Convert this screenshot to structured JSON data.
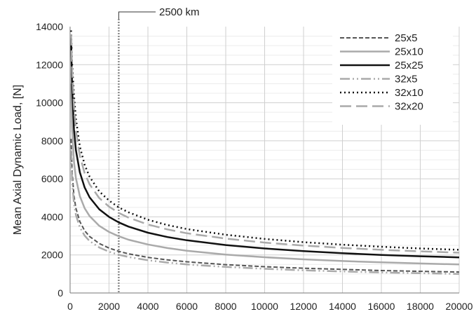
{
  "chart_data": {
    "type": "line",
    "title": "",
    "xlabel": "",
    "ylabel": "Mean Axial Dynamic Load, [N]",
    "xlim": [
      0,
      20000
    ],
    "ylim": [
      0,
      14000
    ],
    "x_ticks": [
      0,
      2000,
      4000,
      6000,
      8000,
      10000,
      12000,
      14000,
      16000,
      18000,
      20000
    ],
    "y_ticks": [
      0,
      2000,
      4000,
      6000,
      8000,
      10000,
      12000,
      14000
    ],
    "grid": true,
    "legend": "top-right",
    "annotation": {
      "label": "2500 km",
      "x": 2500
    },
    "x": [
      50,
      100,
      200,
      300,
      500,
      750,
      1000,
      1500,
      2000,
      2500,
      3000,
      4000,
      5000,
      6000,
      8000,
      10000,
      12000,
      14000,
      16000,
      18000,
      20000
    ],
    "series": [
      {
        "name": "25x5",
        "color": "#555555",
        "dash": "6,3",
        "width": 2,
        "values": [
          8100,
          6400,
          5100,
          4450,
          3750,
          3270,
          2970,
          2600,
          2360,
          2190,
          2060,
          1870,
          1740,
          1640,
          1490,
          1380,
          1300,
          1240,
          1180,
          1140,
          1100
        ]
      },
      {
        "name": "25x10",
        "color": "#aaaaaa",
        "dash": "",
        "width": 2.5,
        "values": [
          11000,
          8700,
          6900,
          6030,
          5090,
          4450,
          4040,
          3530,
          3210,
          2980,
          2800,
          2550,
          2360,
          2220,
          2020,
          1880,
          1770,
          1680,
          1610,
          1550,
          1500
        ]
      },
      {
        "name": "25x25",
        "color": "#111111",
        "dash": "",
        "width": 2.5,
        "values": [
          13400,
          10900,
          8600,
          7500,
          6340,
          5540,
          5030,
          4400,
          4000,
          3710,
          3490,
          3170,
          2940,
          2770,
          2520,
          2340,
          2200,
          2090,
          2000,
          1930,
          1870
        ]
      },
      {
        "name": "32x5",
        "color": "#aaaaaa",
        "dash": "14,4,2,4,2,4",
        "width": 2.5,
        "values": [
          7500,
          5900,
          4700,
          4100,
          3450,
          3010,
          2730,
          2390,
          2170,
          2010,
          1890,
          1720,
          1600,
          1500,
          1370,
          1270,
          1190,
          1130,
          1080,
          1040,
          1000
        ]
      },
      {
        "name": "32x10",
        "color": "#111111",
        "dash": "2,4",
        "width": 2.5,
        "values": [
          13800,
          12100,
          10400,
          9150,
          7700,
          6730,
          6110,
          5340,
          4860,
          4500,
          4240,
          3850,
          3570,
          3360,
          3060,
          2840,
          2670,
          2540,
          2430,
          2340,
          2270
        ]
      },
      {
        "name": "32x20",
        "color": "#aaaaaa",
        "dash": "16,7",
        "width": 2.5,
        "values": [
          13600,
          11800,
          9800,
          8550,
          7200,
          6290,
          5710,
          4990,
          4540,
          4210,
          3960,
          3600,
          3340,
          3140,
          2860,
          2650,
          2490,
          2370,
          2270,
          2190,
          2120
        ]
      }
    ]
  }
}
